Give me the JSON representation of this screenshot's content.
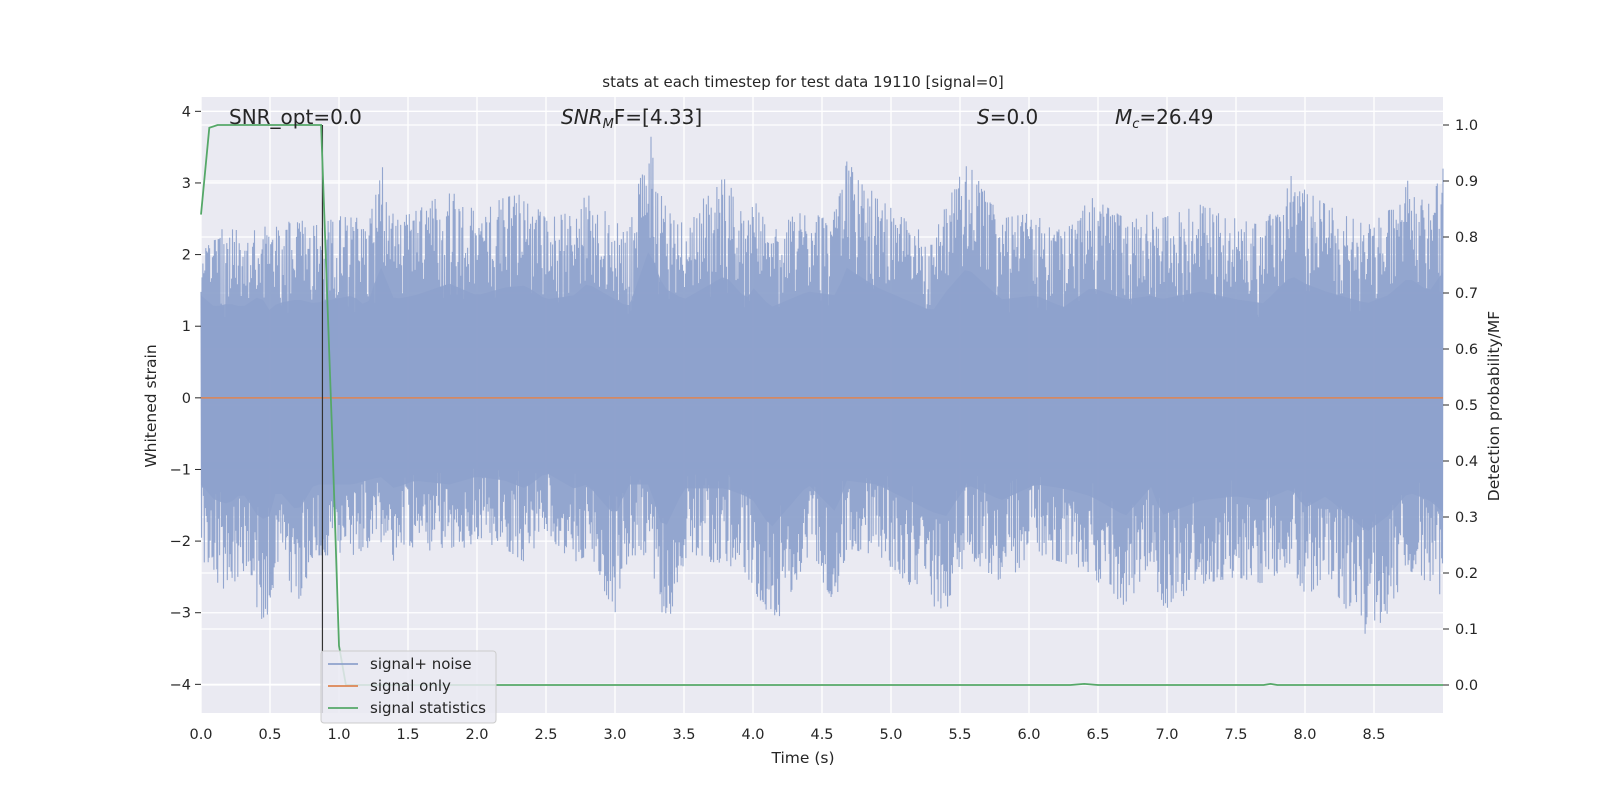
{
  "chart_data": {
    "type": "line",
    "title": "stats at each timestep for test data 19110 [signal=0]",
    "xlabel": "Time (s)",
    "ylabel": "Whitened strain",
    "ylabel_right": "Detection probability/MF",
    "xlim": [
      0.0,
      9.0
    ],
    "ylim": [
      -4.4,
      4.2
    ],
    "ylim_right": [
      -0.05,
      1.05
    ],
    "x_ticks": [
      "0.0",
      "0.5",
      "1.0",
      "1.5",
      "2.0",
      "2.5",
      "3.0",
      "3.5",
      "4.0",
      "4.5",
      "5.0",
      "5.5",
      "6.0",
      "6.5",
      "7.0",
      "7.5",
      "8.0",
      "8.5"
    ],
    "x_tick_values": [
      0.0,
      0.5,
      1.0,
      1.5,
      2.0,
      2.5,
      3.0,
      3.5,
      4.0,
      4.5,
      5.0,
      5.5,
      6.0,
      6.5,
      7.0,
      7.5,
      8.0,
      8.5
    ],
    "y_ticks": [
      "−4",
      "−3",
      "−2",
      "−1",
      "0",
      "1",
      "2",
      "3",
      "4"
    ],
    "y_tick_values": [
      -4,
      -3,
      -2,
      -1,
      0,
      1,
      2,
      3,
      4
    ],
    "y_right_ticks": [
      "0.0",
      "0.1",
      "0.2",
      "0.3",
      "0.4",
      "0.5",
      "0.6",
      "0.7",
      "0.8",
      "0.9",
      "1.0"
    ],
    "y_right_tick_values": [
      0.0,
      0.1,
      0.2,
      0.3,
      0.4,
      0.5,
      0.6,
      0.7,
      0.8,
      0.9,
      1.0
    ],
    "grid": true,
    "vline_x": 0.88,
    "annotations": {
      "snr_opt": "SNR_opt=0.0",
      "snr_mf_name": "SNR",
      "snr_mf_sub": "M",
      "snr_mf_rest": "F=[4.33]",
      "s_name": "S",
      "s_rest": "=0.0",
      "mc_name": "M",
      "mc_sub": "c",
      "mc_rest": "=26.49"
    },
    "legend": {
      "position": "lower-left",
      "entries": [
        "signal+ noise",
        "signal only",
        "signal statistics"
      ]
    },
    "series": [
      {
        "name": "signal+ noise",
        "color": "#8ea2cc",
        "envelope_peaks": [
          [
            0.0,
            2.6,
            -2.2
          ],
          [
            0.1,
            2.3,
            -2.6
          ],
          [
            0.2,
            2.4,
            -2.7
          ],
          [
            0.3,
            2.3,
            -2.4
          ],
          [
            0.43,
            2.6,
            -3.1
          ],
          [
            0.5,
            2.2,
            -3.0
          ],
          [
            0.55,
            2.4,
            -2.3
          ],
          [
            0.7,
            2.5,
            -2.9
          ],
          [
            0.82,
            2.4,
            -2.2
          ],
          [
            1.1,
            2.6,
            -2.2
          ],
          [
            1.2,
            2.3,
            -2.1
          ],
          [
            1.3,
            3.35,
            -2.0
          ],
          [
            1.4,
            2.5,
            -2.3
          ],
          [
            1.55,
            2.6,
            -2.1
          ],
          [
            1.8,
            2.9,
            -2.2
          ],
          [
            2.0,
            2.6,
            -2.0
          ],
          [
            2.2,
            2.8,
            -2.1
          ],
          [
            2.35,
            2.85,
            -2.3
          ],
          [
            2.5,
            2.5,
            -1.9
          ],
          [
            2.7,
            2.6,
            -2.3
          ],
          [
            2.8,
            2.9,
            -2.2
          ],
          [
            3.0,
            2.5,
            -3.0
          ],
          [
            3.1,
            2.3,
            -2.2
          ],
          [
            3.25,
            3.8,
            -2.2
          ],
          [
            3.35,
            2.8,
            -3.4
          ],
          [
            3.5,
            2.5,
            -2.3
          ],
          [
            3.8,
            3.1,
            -2.3
          ],
          [
            3.95,
            2.5,
            -2.5
          ],
          [
            4.0,
            2.8,
            -2.6
          ],
          [
            4.13,
            2.3,
            -3.3
          ],
          [
            4.4,
            2.7,
            -2.2
          ],
          [
            4.6,
            2.6,
            -2.9
          ],
          [
            4.68,
            3.3,
            -2.1
          ],
          [
            4.9,
            2.8,
            -2.2
          ],
          [
            5.3,
            2.2,
            -2.9
          ],
          [
            5.4,
            2.7,
            -3.0
          ],
          [
            5.55,
            3.3,
            -2.2
          ],
          [
            5.8,
            2.5,
            -2.6
          ],
          [
            6.05,
            2.6,
            -2.2
          ],
          [
            6.25,
            2.3,
            -2.3
          ],
          [
            6.45,
            2.8,
            -2.5
          ],
          [
            6.7,
            2.5,
            -3.0
          ],
          [
            6.9,
            2.6,
            -2.2
          ],
          [
            6.95,
            2.5,
            -3.0
          ],
          [
            7.25,
            2.7,
            -2.6
          ],
          [
            7.5,
            2.5,
            -2.5
          ],
          [
            7.7,
            2.4,
            -2.6
          ],
          [
            7.9,
            3.1,
            -2.3
          ],
          [
            8.0,
            2.9,
            -2.8
          ],
          [
            8.15,
            2.7,
            -2.5
          ],
          [
            8.45,
            2.4,
            -3.4
          ],
          [
            8.6,
            2.6,
            -3.0
          ],
          [
            8.75,
            3.05,
            -2.4
          ],
          [
            8.9,
            2.7,
            -2.6
          ],
          [
            9.0,
            3.2,
            -2.9
          ]
        ]
      },
      {
        "name": "signal only",
        "color": "#dd8452",
        "y_constant": 0.0
      },
      {
        "name": "signal statistics",
        "color": "#55a868",
        "axis": "right",
        "points": [
          [
            0.0,
            0.84
          ],
          [
            0.06,
            0.995
          ],
          [
            0.12,
            1.0
          ],
          [
            0.5,
            1.0
          ],
          [
            0.87,
            1.0
          ],
          [
            0.95,
            0.45
          ],
          [
            1.0,
            0.07
          ],
          [
            1.05,
            0.0
          ],
          [
            2.0,
            0.0
          ],
          [
            5.0,
            0.0
          ],
          [
            6.3,
            0.0
          ],
          [
            6.4,
            0.002
          ],
          [
            6.5,
            0.0
          ],
          [
            7.7,
            0.0
          ],
          [
            7.75,
            0.002
          ],
          [
            7.8,
            0.0
          ],
          [
            9.0,
            0.0
          ]
        ]
      }
    ]
  }
}
